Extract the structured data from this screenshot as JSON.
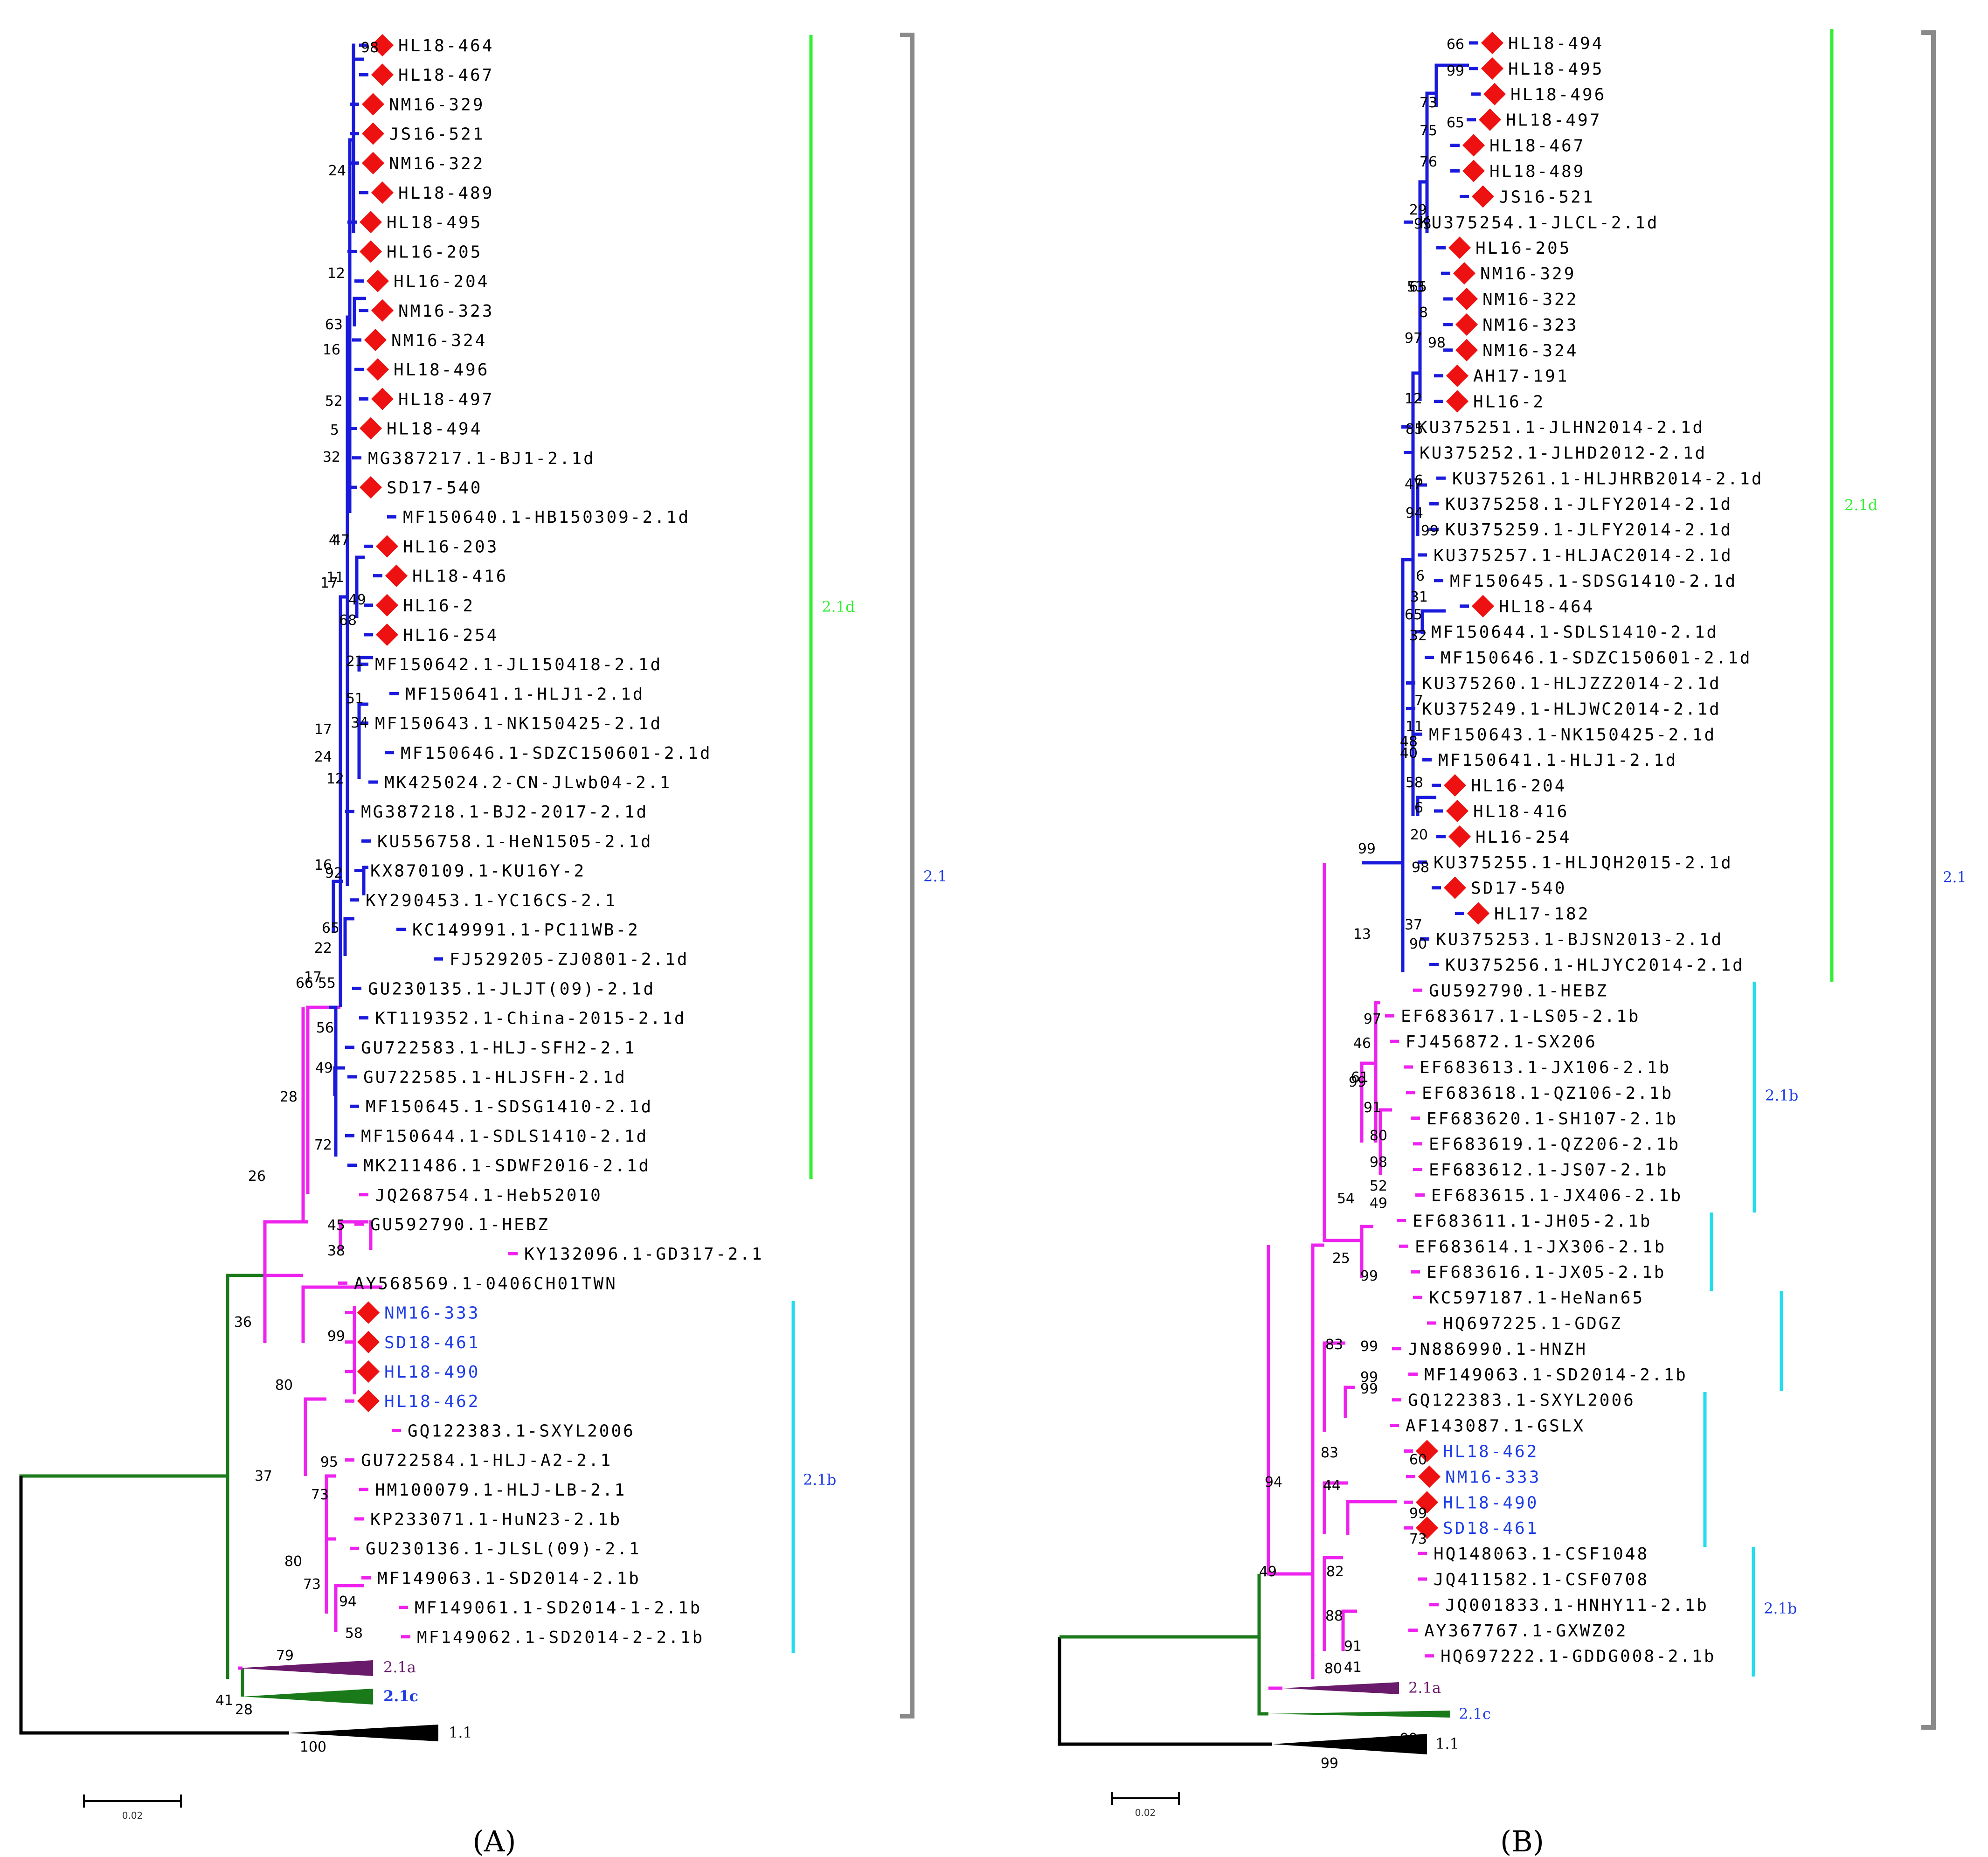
{
  "colors": {
    "blue_branch": "#1a1adc",
    "magenta_branch": "#ee22ee",
    "green_branch": "#1a7a1a",
    "black_branch": "#000000",
    "purple_collapsed": "#6a1a6a",
    "marker": "#ee1111",
    "green_bar": "#33ee33",
    "cyan_bar": "#22ddee",
    "gray_bracket": "#8a8a8a",
    "highlight_text": "#1e3ce6"
  },
  "panels": [
    {
      "id": "A",
      "label": "(A)",
      "scale_label": "0.02",
      "tips": [
        {
          "name": "HL18-464",
          "marked": true
        },
        {
          "name": "HL18-467",
          "marked": true
        },
        {
          "name": "NM16-329",
          "marked": true
        },
        {
          "name": "JS16-521",
          "marked": true
        },
        {
          "name": "NM16-322",
          "marked": true
        },
        {
          "name": "HL18-489",
          "marked": true
        },
        {
          "name": "HL18-495",
          "marked": true
        },
        {
          "name": "HL16-205",
          "marked": true
        },
        {
          "name": "HL16-204",
          "marked": true
        },
        {
          "name": "NM16-323",
          "marked": true
        },
        {
          "name": "NM16-324",
          "marked": true
        },
        {
          "name": "HL18-496",
          "marked": true
        },
        {
          "name": "HL18-497",
          "marked": true
        },
        {
          "name": "HL18-494",
          "marked": true
        },
        {
          "name": "MG387217.1-BJ1-2.1d",
          "marked": false
        },
        {
          "name": "SD17-540",
          "marked": true
        },
        {
          "name": "MF150640.1-HB150309-2.1d",
          "marked": false
        },
        {
          "name": "HL16-203",
          "marked": true
        },
        {
          "name": "HL18-416",
          "marked": true
        },
        {
          "name": "HL16-2",
          "marked": true
        },
        {
          "name": "HL16-254",
          "marked": true
        },
        {
          "name": "MF150642.1-JL150418-2.1d",
          "marked": false
        },
        {
          "name": "MF150641.1-HLJ1-2.1d",
          "marked": false
        },
        {
          "name": "MF150643.1-NK150425-2.1d",
          "marked": false
        },
        {
          "name": "MF150646.1-SDZC150601-2.1d",
          "marked": false
        },
        {
          "name": "MK425024.2-CN-JLwb04-2.1",
          "marked": false
        },
        {
          "name": "MG387218.1-BJ2-2017-2.1d",
          "marked": false
        },
        {
          "name": "KU556758.1-HeN1505-2.1d",
          "marked": false
        },
        {
          "name": "KX870109.1-KU16Y-2",
          "marked": false
        },
        {
          "name": "KY290453.1-YC16CS-2.1",
          "marked": false
        },
        {
          "name": "KC149991.1-PC11WB-2",
          "marked": false
        },
        {
          "name": "FJ529205-ZJ0801-2.1d",
          "marked": false
        },
        {
          "name": "GU230135.1-JLJT(09)-2.1d",
          "marked": false
        },
        {
          "name": "KT119352.1-China-2015-2.1d",
          "marked": false
        },
        {
          "name": "GU722583.1-HLJ-SFH2-2.1",
          "marked": false
        },
        {
          "name": "GU722585.1-HLJSFH-2.1d",
          "marked": false
        },
        {
          "name": "MF150645.1-SDSG1410-2.1d",
          "marked": false
        },
        {
          "name": "MF150644.1-SDLS1410-2.1d",
          "marked": false
        },
        {
          "name": "MK211486.1-SDWF2016-2.1d",
          "marked": false
        },
        {
          "name": "JQ268754.1-Heb52010",
          "marked": false
        },
        {
          "name": "GU592790.1-HEBZ",
          "marked": false
        },
        {
          "name": "KY132096.1-GD317-2.1",
          "marked": false
        },
        {
          "name": "AY568569.1-0406CH01TWN",
          "marked": false
        },
        {
          "name": "NM16-333",
          "marked": true,
          "highlight": true
        },
        {
          "name": "SD18-461",
          "marked": true,
          "highlight": true
        },
        {
          "name": "HL18-490",
          "marked": true,
          "highlight": true
        },
        {
          "name": "HL18-462",
          "marked": true,
          "highlight": true
        },
        {
          "name": "GQ122383.1-SXYL2006",
          "marked": false
        },
        {
          "name": "GU722584.1-HLJ-A2-2.1",
          "marked": false
        },
        {
          "name": "HM100079.1-HLJ-LB-2.1",
          "marked": false
        },
        {
          "name": "KP233071.1-HuN23-2.1b",
          "marked": false
        },
        {
          "name": "GU230136.1-JLSL(09)-2.1",
          "marked": false
        },
        {
          "name": "MF149063.1-SD2014-2.1b",
          "marked": false
        },
        {
          "name": "MF149061.1-SD2014-1-2.1b",
          "marked": false
        },
        {
          "name": "MF149062.1-SD2014-2-2.1b",
          "marked": false
        }
      ],
      "collapsed": [
        {
          "name": "2.1a"
        },
        {
          "name": "2.1c"
        },
        {
          "name": "1.1"
        }
      ],
      "bootstrap": [
        "98",
        "24",
        "12",
        "63",
        "16",
        "52",
        "5",
        "32",
        "4",
        "47",
        "11",
        "17",
        "49",
        "68",
        "21",
        "51",
        "34",
        "17",
        "24",
        "12",
        "16",
        "92",
        "65",
        "22",
        "66",
        "17",
        "55",
        "56",
        "49",
        "72",
        "28",
        "26",
        "45",
        "38",
        "36",
        "99",
        "80",
        "37",
        "95",
        "73",
        "80",
        "73",
        "94",
        "58",
        "79",
        "41",
        "28",
        "100"
      ],
      "clade_labels": [
        {
          "name": "2.1d"
        },
        {
          "name": "2.1b"
        },
        {
          "name": "2.1"
        }
      ]
    },
    {
      "id": "B",
      "label": "(B)",
      "scale_label": "0.02",
      "tips": [
        {
          "name": "HL18-494",
          "marked": true
        },
        {
          "name": "HL18-495",
          "marked": true
        },
        {
          "name": "HL18-496",
          "marked": true
        },
        {
          "name": "HL18-497",
          "marked": true
        },
        {
          "name": "HL18-467",
          "marked": true
        },
        {
          "name": "HL18-489",
          "marked": true
        },
        {
          "name": "JS16-521",
          "marked": true
        },
        {
          "name": "KU375254.1-JLCL-2.1d",
          "marked": false
        },
        {
          "name": "HL16-205",
          "marked": true
        },
        {
          "name": "NM16-329",
          "marked": true
        },
        {
          "name": "NM16-322",
          "marked": true
        },
        {
          "name": "NM16-323",
          "marked": true
        },
        {
          "name": "NM16-324",
          "marked": true
        },
        {
          "name": "AH17-191",
          "marked": true
        },
        {
          "name": "HL16-2",
          "marked": true
        },
        {
          "name": "KU375251.1-JLHN2014-2.1d",
          "marked": false
        },
        {
          "name": "KU375252.1-JLHD2012-2.1d",
          "marked": false
        },
        {
          "name": "KU375261.1-HLJHRB2014-2.1d",
          "marked": false
        },
        {
          "name": "KU375258.1-JLFY2014-2.1d",
          "marked": false
        },
        {
          "name": "KU375259.1-JLFY2014-2.1d",
          "marked": false
        },
        {
          "name": "KU375257.1-HLJAC2014-2.1d",
          "marked": false
        },
        {
          "name": "MF150645.1-SDSG1410-2.1d",
          "marked": false
        },
        {
          "name": "HL18-464",
          "marked": true
        },
        {
          "name": "MF150644.1-SDLS1410-2.1d",
          "marked": false
        },
        {
          "name": "MF150646.1-SDZC150601-2.1d",
          "marked": false
        },
        {
          "name": "KU375260.1-HLJZZ2014-2.1d",
          "marked": false
        },
        {
          "name": "KU375249.1-HLJWC2014-2.1d",
          "marked": false
        },
        {
          "name": "MF150643.1-NK150425-2.1d",
          "marked": false
        },
        {
          "name": "MF150641.1-HLJ1-2.1d",
          "marked": false
        },
        {
          "name": "HL16-204",
          "marked": true
        },
        {
          "name": "HL18-416",
          "marked": true
        },
        {
          "name": "HL16-254",
          "marked": true
        },
        {
          "name": "KU375255.1-HLJQH2015-2.1d",
          "marked": false
        },
        {
          "name": "SD17-540",
          "marked": true
        },
        {
          "name": "HL17-182",
          "marked": true
        },
        {
          "name": "KU375253.1-BJSN2013-2.1d",
          "marked": false
        },
        {
          "name": "KU375256.1-HLJYC2014-2.1d",
          "marked": false
        },
        {
          "name": "GU592790.1-HEBZ",
          "marked": false
        },
        {
          "name": "EF683617.1-LS05-2.1b",
          "marked": false
        },
        {
          "name": "FJ456872.1-SX206",
          "marked": false
        },
        {
          "name": "EF683613.1-JX106-2.1b",
          "marked": false
        },
        {
          "name": "EF683618.1-QZ106-2.1b",
          "marked": false
        },
        {
          "name": "EF683620.1-SH107-2.1b",
          "marked": false
        },
        {
          "name": "EF683619.1-QZ206-2.1b",
          "marked": false
        },
        {
          "name": "EF683612.1-JS07-2.1b",
          "marked": false
        },
        {
          "name": "EF683615.1-JX406-2.1b",
          "marked": false
        },
        {
          "name": "EF683611.1-JH05-2.1b",
          "marked": false
        },
        {
          "name": "EF683614.1-JX306-2.1b",
          "marked": false
        },
        {
          "name": "EF683616.1-JX05-2.1b",
          "marked": false
        },
        {
          "name": "KC597187.1-HeNan65",
          "marked": false
        },
        {
          "name": "HQ697225.1-GDGZ",
          "marked": false
        },
        {
          "name": "JN886990.1-HNZH",
          "marked": false
        },
        {
          "name": "MF149063.1-SD2014-2.1b",
          "marked": false
        },
        {
          "name": "GQ122383.1-SXYL2006",
          "marked": false
        },
        {
          "name": "AF143087.1-GSLX",
          "marked": false
        },
        {
          "name": "HL18-462",
          "marked": true,
          "highlight": true
        },
        {
          "name": "NM16-333",
          "marked": true,
          "highlight": true
        },
        {
          "name": "HL18-490",
          "marked": true,
          "highlight": true
        },
        {
          "name": "SD18-461",
          "marked": true,
          "highlight": true
        },
        {
          "name": "HQ148063.1-CSF1048",
          "marked": false
        },
        {
          "name": "JQ411582.1-CSF0708",
          "marked": false
        },
        {
          "name": "JQ001833.1-HNHY11-2.1b",
          "marked": false
        },
        {
          "name": "AY367767.1-GXWZ02",
          "marked": false
        },
        {
          "name": "HQ697222.1-GDDG008-2.1b",
          "marked": false
        }
      ],
      "collapsed": [
        {
          "name": "2.1a"
        },
        {
          "name": "2.1c"
        },
        {
          "name": "1.1"
        }
      ],
      "bootstrap": [
        "66",
        "99",
        "73",
        "75",
        "65",
        "76",
        "29",
        "93",
        "53",
        "65",
        "8",
        "98",
        "97",
        "12",
        "85",
        "47",
        "6",
        "94",
        "99",
        "6",
        "31",
        "65",
        "32",
        "7",
        "11",
        "48",
        "40",
        "58",
        "6",
        "20",
        "98",
        "37",
        "90",
        "99",
        "13",
        "97",
        "46",
        "61",
        "99",
        "91",
        "80",
        "98",
        "52",
        "49",
        "54",
        "25",
        "99",
        "83",
        "99",
        "99",
        "99",
        "83",
        "44",
        "60",
        "99",
        "73",
        "94",
        "49",
        "82",
        "88",
        "91",
        "41",
        "80",
        "99",
        "99"
      ],
      "clade_labels": [
        {
          "name": "2.1d"
        },
        {
          "name": "2.1b"
        },
        {
          "name": "2.1"
        }
      ]
    }
  ]
}
